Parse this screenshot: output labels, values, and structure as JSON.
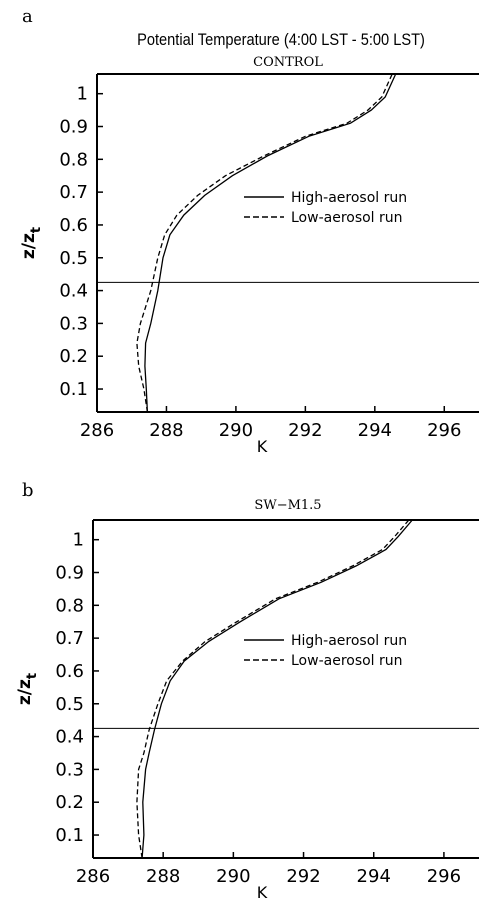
{
  "figure": {
    "main_title": "Potential Temperature (4:00 LST - 5:00 LST)"
  },
  "chart_data": [
    {
      "type": "line",
      "panel_letter": "a",
      "title": "CONTROL",
      "xlabel": "K",
      "ylabel": "z/z",
      "ylabel_subscript": "t",
      "xlim": [
        286,
        297
      ],
      "ylim": [
        0.03,
        1.06
      ],
      "xticks": [
        286,
        288,
        290,
        292,
        294,
        296
      ],
      "yticks": [
        0.1,
        0.2,
        0.3,
        0.4,
        0.5,
        0.6,
        0.7,
        0.8,
        0.9,
        1
      ],
      "ytick_labels": [
        "0.1",
        "0.2",
        "0.3",
        "0.4",
        "0.5",
        "0.6",
        "0.7",
        "0.8",
        "0.9",
        "1"
      ],
      "hline": 0.425,
      "legend_position": "right",
      "series": [
        {
          "name": "High-aerosol run",
          "style": "solid",
          "color": "#000000",
          "x": [
            287.45,
            287.42,
            287.38,
            287.4,
            287.55,
            287.65,
            287.75,
            287.9,
            288.1,
            288.5,
            289.1,
            289.9,
            290.9,
            292.1,
            293.3,
            293.9,
            294.3,
            294.6
          ],
          "y": [
            0.03,
            0.1,
            0.17,
            0.24,
            0.3,
            0.35,
            0.4,
            0.5,
            0.57,
            0.63,
            0.69,
            0.75,
            0.81,
            0.87,
            0.91,
            0.95,
            0.99,
            1.06
          ]
        },
        {
          "name": "Low-aerosol run",
          "style": "dashed",
          "color": "#000000",
          "x": [
            287.45,
            287.35,
            287.2,
            287.15,
            287.25,
            287.4,
            287.55,
            287.75,
            287.95,
            288.3,
            288.9,
            289.7,
            290.8,
            292.0,
            293.2,
            293.8,
            294.2,
            294.5
          ],
          "y": [
            0.03,
            0.1,
            0.17,
            0.24,
            0.3,
            0.35,
            0.4,
            0.5,
            0.57,
            0.63,
            0.69,
            0.75,
            0.81,
            0.87,
            0.91,
            0.95,
            0.99,
            1.06
          ]
        }
      ]
    },
    {
      "type": "line",
      "panel_letter": "b",
      "title": "SW−M1.5",
      "xlabel": "K",
      "ylabel": "z/z",
      "ylabel_subscript": "t",
      "xlim": [
        286,
        297
      ],
      "ylim": [
        0.03,
        1.06
      ],
      "xticks": [
        286,
        288,
        290,
        292,
        294,
        296
      ],
      "yticks": [
        0.1,
        0.2,
        0.3,
        0.4,
        0.5,
        0.6,
        0.7,
        0.8,
        0.9,
        1
      ],
      "ytick_labels": [
        "0.1",
        "0.2",
        "0.3",
        "0.4",
        "0.5",
        "0.6",
        "0.7",
        "0.8",
        "0.9",
        "1"
      ],
      "hline": 0.425,
      "legend_position": "right",
      "series": [
        {
          "name": "High-aerosol run",
          "style": "solid",
          "color": "#000000",
          "x": [
            287.4,
            287.45,
            287.42,
            287.5,
            287.6,
            287.75,
            287.95,
            288.2,
            288.6,
            289.3,
            290.2,
            291.3,
            292.5,
            293.5,
            294.35,
            294.7,
            295.1
          ],
          "y": [
            0.03,
            0.1,
            0.2,
            0.3,
            0.35,
            0.42,
            0.5,
            0.57,
            0.63,
            0.69,
            0.75,
            0.82,
            0.87,
            0.92,
            0.97,
            1.01,
            1.06
          ]
        },
        {
          "name": "Low-aerosol run",
          "style": "dashed",
          "color": "#000000",
          "x": [
            287.4,
            287.3,
            287.25,
            287.3,
            287.45,
            287.6,
            287.85,
            288.1,
            288.55,
            289.2,
            290.1,
            291.2,
            292.4,
            293.4,
            294.25,
            294.6,
            295.0
          ],
          "y": [
            0.03,
            0.1,
            0.2,
            0.3,
            0.35,
            0.42,
            0.5,
            0.57,
            0.63,
            0.69,
            0.75,
            0.82,
            0.87,
            0.92,
            0.97,
            1.01,
            1.06
          ]
        }
      ]
    }
  ]
}
